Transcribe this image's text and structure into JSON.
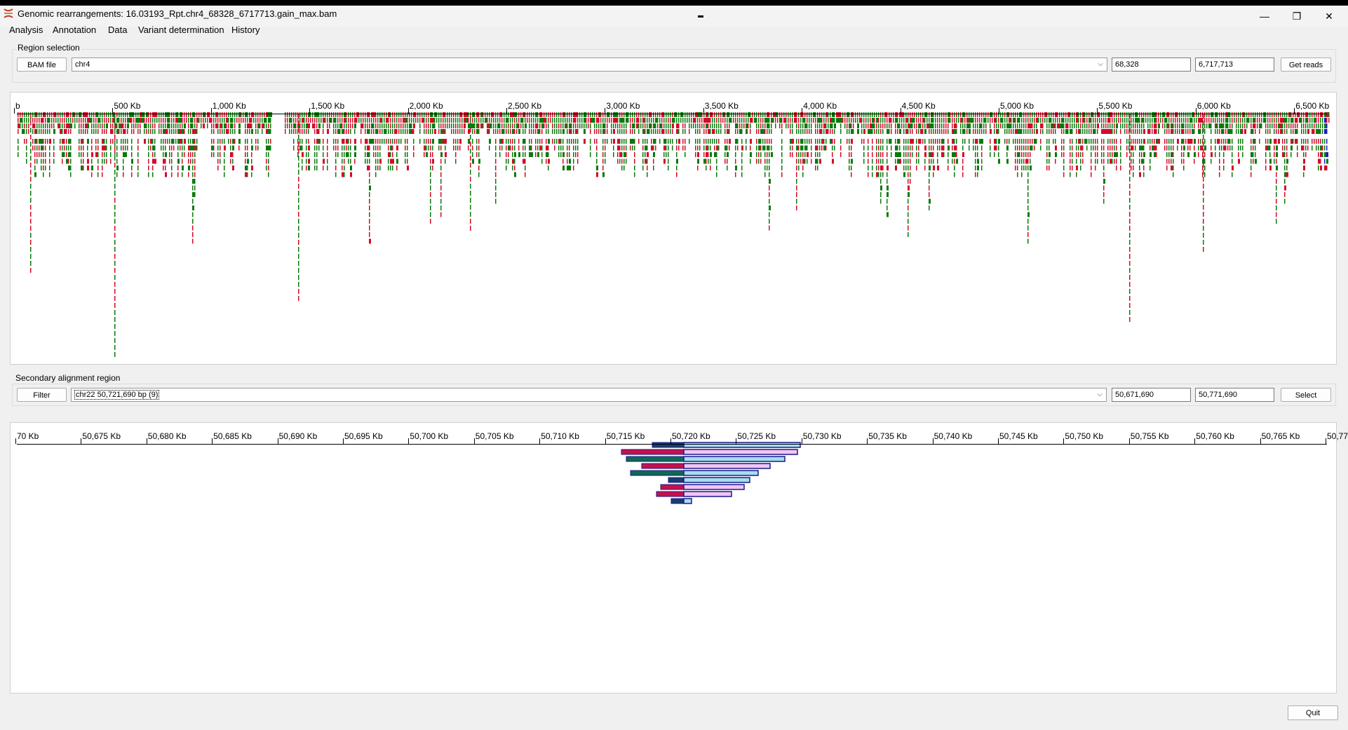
{
  "window": {
    "title": "Genomic rearrangements: 16.03193_Rpt.chr4_68328_6717713.gain_max.bam",
    "minimize_glyph": "—",
    "restore_glyph": "❐",
    "close_glyph": "✕"
  },
  "menu": [
    "Analysis",
    "Annotation",
    "Data",
    "Variant determination",
    "History"
  ],
  "region_selection": {
    "label": "Region selection",
    "bam_button": "BAM file",
    "chromosome": "chr4",
    "start": "68,328",
    "end": "6,717,713",
    "get_reads_button": "Get reads"
  },
  "main_track": {
    "axis_labels": [
      "b",
      "500 Kb",
      "1,000 Kb",
      "1,500 Kb",
      "2,000 Kb",
      "2,500 Kb",
      "3,000 Kb",
      "3,500 Kb",
      "4,000 Kb",
      "4,500 Kb",
      "5,000 Kb",
      "5,500 Kb",
      "6,000 Kb",
      "6,500 Kb"
    ],
    "colors": {
      "forward": "#0a7a0a",
      "reverse": "#d40a2a",
      "mate": "#1a1acc"
    }
  },
  "secondary_region": {
    "label": "Secondary alignment region",
    "filter_button": "Filter",
    "selection": "chr22 50,721,690 bp (9)",
    "start": "50,671,690",
    "end": "50,771,690",
    "select_button": "Select"
  },
  "secondary_track": {
    "axis_labels": [
      "70 Kb",
      "50,675 Kb",
      "50,680 Kb",
      "50,685 Kb",
      "50,690 Kb",
      "50,695 Kb",
      "50,700 Kb",
      "50,705 Kb",
      "50,710 Kb",
      "50,715 Kb",
      "50,720 Kb",
      "50,725 Kb",
      "50,730 Kb",
      "50,735 Kb",
      "50,740 Kb",
      "50,745 Kb",
      "50,750 Kb",
      "50,755 Kb",
      "50,760 Kb",
      "50,765 Kb",
      "50,77"
    ],
    "colors": {
      "dark_blue": "#163e6e",
      "light_blue": "#a6dcef",
      "magenta": "#c8104a",
      "light_pink": "#f1c4f1",
      "dark_teal": "#0e6a50",
      "outline": "#1a1a8c"
    }
  },
  "quit_button": "Quit"
}
